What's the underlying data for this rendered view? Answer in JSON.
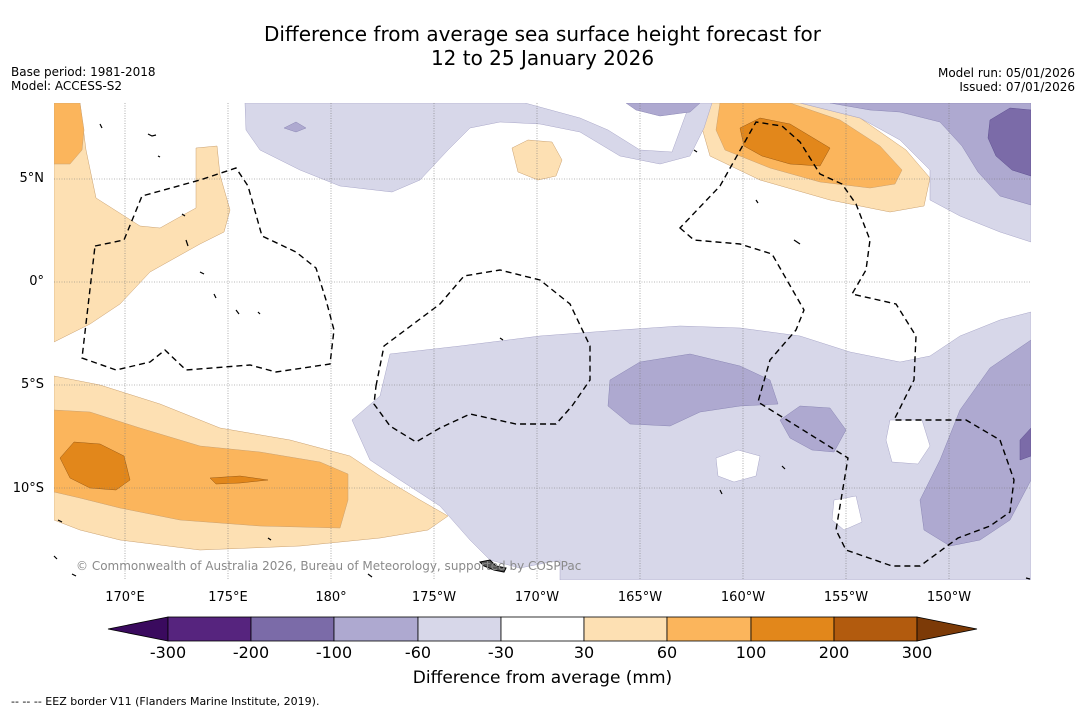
{
  "title": {
    "line1": "Difference from average sea surface height forecast for",
    "line2": "12 to 25 January 2026"
  },
  "meta": {
    "base_period": "Base period: 1981-2018",
    "model": "Model: ACCESS-S2",
    "model_run": "Model run: 05/01/2026",
    "issued": "Issued: 07/01/2026"
  },
  "map": {
    "latitude_labels": [
      "5°N",
      "0°",
      "5°S",
      "10°S"
    ],
    "longitude_labels": [
      "170°E",
      "175°E",
      "180°",
      "175°W",
      "170°W",
      "165°W",
      "160°W",
      "155°W",
      "150°W"
    ],
    "credit": "© Commonwealth of Australia 2026, Bureau of Meteorology, supported by COSPPac",
    "eez_border_style": "dashed black line"
  },
  "colorbar": {
    "title": "Difference from average (mm)",
    "ticks": [
      "-300",
      "-200",
      "-100",
      "-60",
      "-30",
      "30",
      "60",
      "100",
      "200",
      "300"
    ],
    "colors": [
      "#3a0a5e",
      "#56247e",
      "#7b6ba8",
      "#aea9d0",
      "#d7d7e9",
      "#ffffff",
      "#fde0b3",
      "#fbb55c",
      "#e2871b",
      "#b25b0e",
      "#7c3a07"
    ]
  },
  "footer": {
    "eez_legend": "--  --  -- EEZ border V11 (Flanders Marine Institute, 2019)."
  }
}
